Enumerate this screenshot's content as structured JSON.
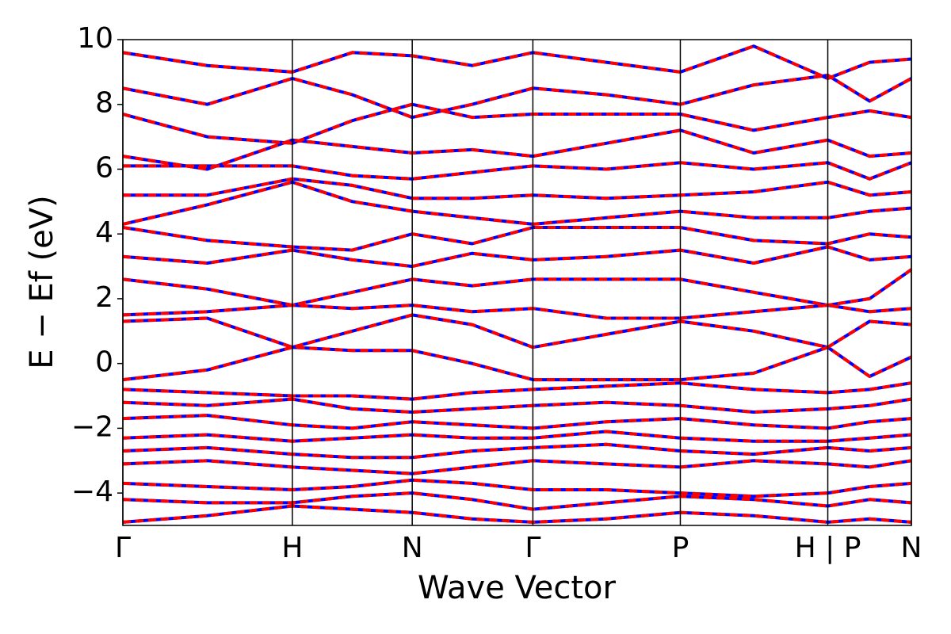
{
  "chart_data": {
    "type": "band-structure",
    "xlabel": "Wave Vector",
    "ylabel": "E − Ef (eV)",
    "xlim": [
      0,
      1
    ],
    "xticks": [
      {
        "value": 0,
        "label": "Γ"
      },
      {
        "value": 0.215,
        "label": "H"
      },
      {
        "value": 0.367,
        "label": "N"
      },
      {
        "value": 0.52,
        "label": "Γ"
      },
      {
        "value": 0.707,
        "label": "P"
      },
      {
        "value": 0.894,
        "label": "H | P"
      },
      {
        "value": 1,
        "label": "N"
      }
    ],
    "ylim": [
      -5,
      10
    ],
    "yticks": [
      {
        "value": -4,
        "label": "−4"
      },
      {
        "value": -2,
        "label": "−2"
      },
      0,
      2,
      4,
      6,
      8,
      10
    ],
    "xgrid": true,
    "line_colors": [
      "#0000ff",
      "#ff0000"
    ],
    "x": [
      0,
      0.107,
      0.215,
      0.291,
      0.367,
      0.443,
      0.52,
      0.613,
      0.707,
      0.8,
      0.894,
      0.947,
      1
    ],
    "bands": [
      [
        -4.9,
        -4.7,
        -4.4,
        -4.5,
        -4.6,
        -4.8,
        -4.9,
        -4.8,
        -4.6,
        -4.7,
        -4.9,
        -4.8,
        -4.9
      ],
      [
        -4.2,
        -4.3,
        -4.3,
        -4.1,
        -4.0,
        -4.2,
        -4.5,
        -4.3,
        -4.1,
        -4.2,
        -4.4,
        -4.2,
        -4.3
      ],
      [
        -3.7,
        -3.8,
        -3.9,
        -3.8,
        -3.6,
        -3.7,
        -3.9,
        -3.9,
        -4.0,
        -4.1,
        -4.0,
        -3.8,
        -3.7
      ],
      [
        -3.1,
        -3.0,
        -3.2,
        -3.3,
        -3.4,
        -3.2,
        -3.0,
        -3.1,
        -3.2,
        -3.0,
        -3.1,
        -3.2,
        -3.0
      ],
      [
        -2.7,
        -2.6,
        -2.8,
        -2.9,
        -2.9,
        -2.7,
        -2.6,
        -2.5,
        -2.7,
        -2.8,
        -2.6,
        -2.7,
        -2.6
      ],
      [
        -2.3,
        -2.2,
        -2.4,
        -2.3,
        -2.2,
        -2.3,
        -2.3,
        -2.1,
        -2.3,
        -2.4,
        -2.4,
        -2.3,
        -2.2
      ],
      [
        -1.7,
        -1.6,
        -1.9,
        -2.0,
        -1.8,
        -1.9,
        -2.0,
        -1.8,
        -1.7,
        -1.9,
        -2.0,
        -1.8,
        -1.7
      ],
      [
        -1.2,
        -1.3,
        -1.1,
        -1.4,
        -1.5,
        -1.4,
        -1.3,
        -1.2,
        -1.3,
        -1.5,
        -1.4,
        -1.3,
        -1.1
      ],
      [
        -0.8,
        -0.9,
        -1.0,
        -1.0,
        -1.1,
        -0.9,
        -0.8,
        -0.7,
        -0.6,
        -0.8,
        -0.9,
        -0.8,
        -0.6
      ],
      [
        -0.5,
        -0.2,
        0.5,
        0.4,
        0.4,
        0.0,
        -0.5,
        -0.5,
        -0.5,
        -0.3,
        0.5,
        -0.4,
        0.2
      ],
      [
        1.3,
        1.4,
        0.5,
        1.0,
        1.5,
        1.2,
        0.5,
        0.9,
        1.3,
        1.0,
        0.5,
        1.3,
        1.2
      ],
      [
        1.5,
        1.6,
        1.8,
        1.7,
        1.8,
        1.6,
        1.7,
        1.4,
        1.4,
        1.6,
        1.8,
        1.6,
        1.7
      ],
      [
        2.6,
        2.3,
        1.8,
        2.2,
        2.6,
        2.4,
        2.6,
        2.6,
        2.6,
        2.2,
        1.8,
        2.0,
        2.9
      ],
      [
        3.3,
        3.1,
        3.5,
        3.2,
        3.0,
        3.4,
        3.2,
        3.3,
        3.5,
        3.1,
        3.6,
        3.2,
        3.3
      ],
      [
        4.2,
        3.8,
        3.6,
        3.5,
        4.0,
        3.7,
        4.2,
        4.2,
        4.2,
        3.8,
        3.7,
        4.0,
        3.9
      ],
      [
        4.3,
        4.9,
        5.6,
        5.0,
        4.7,
        4.5,
        4.3,
        4.5,
        4.7,
        4.5,
        4.5,
        4.7,
        4.8
      ],
      [
        5.2,
        5.2,
        5.7,
        5.5,
        5.1,
        5.1,
        5.2,
        5.1,
        5.2,
        5.3,
        5.6,
        5.2,
        5.3
      ],
      [
        6.1,
        6.1,
        6.1,
        5.8,
        5.7,
        5.9,
        6.1,
        6.0,
        6.2,
        6.0,
        6.2,
        5.7,
        6.2
      ],
      [
        6.4,
        6.0,
        6.9,
        6.7,
        6.5,
        6.6,
        6.4,
        6.8,
        7.2,
        6.5,
        6.9,
        6.4,
        6.5
      ],
      [
        7.7,
        7.0,
        6.8,
        7.5,
        8.0,
        7.6,
        7.7,
        7.7,
        7.7,
        7.2,
        7.6,
        7.8,
        7.6
      ],
      [
        8.5,
        8.0,
        8.8,
        8.3,
        7.6,
        8.0,
        8.5,
        8.3,
        8.0,
        8.6,
        8.9,
        8.1,
        8.8
      ],
      [
        9.6,
        9.2,
        9.0,
        9.6,
        9.5,
        9.2,
        9.6,
        9.3,
        9.0,
        9.8,
        8.8,
        9.3,
        9.4
      ]
    ]
  }
}
